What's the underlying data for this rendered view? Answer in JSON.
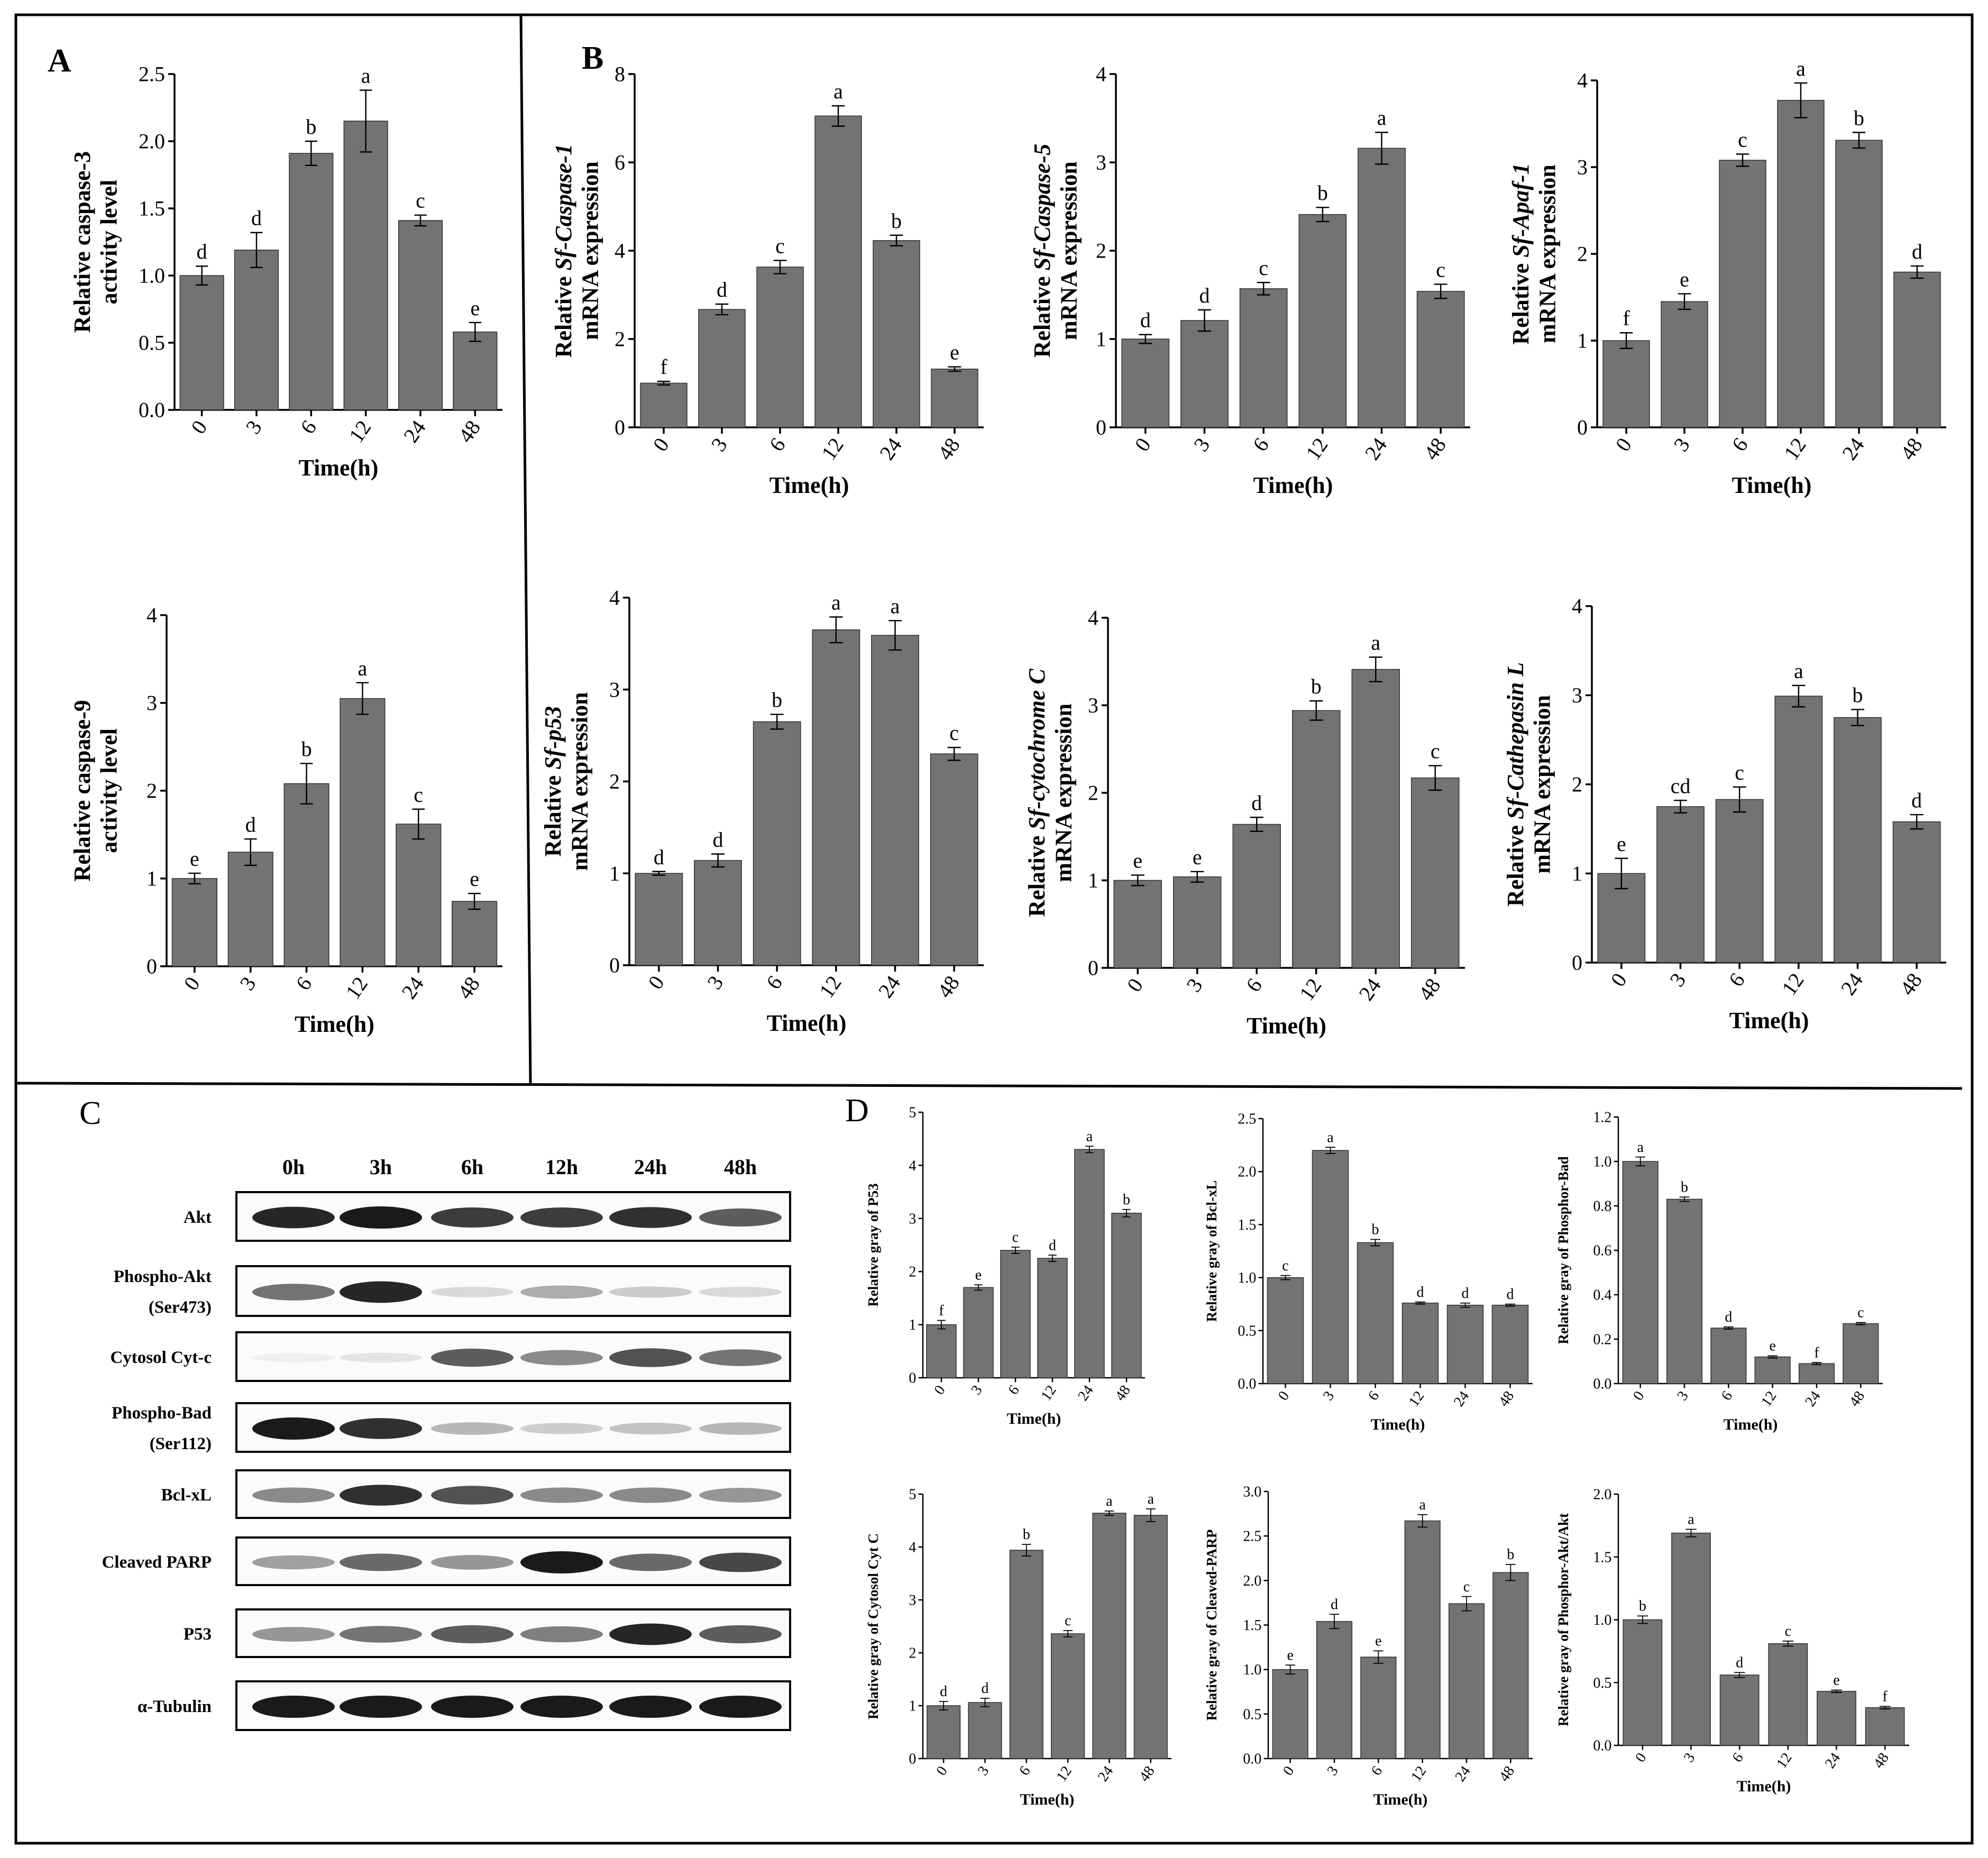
{
  "colors": {
    "bar": "#737373",
    "ink": "#000000",
    "band": "#1a1a1a"
  },
  "panel_labels": {
    "A": "A",
    "B": "B",
    "C": "C",
    "D": "D"
  },
  "chart_data": [
    {
      "id": "a1",
      "type": "bar",
      "xlabel": "Time(h)",
      "ylabel_lines": [
        [
          {
            "t": "Relative caspase-3"
          }
        ],
        [
          {
            "t": "activity level"
          }
        ]
      ],
      "categories": [
        "0",
        "3",
        "6",
        "12",
        "24",
        "48"
      ],
      "values": [
        1.0,
        1.19,
        1.91,
        2.15,
        1.41,
        0.58
      ],
      "errors": [
        0.07,
        0.13,
        0.09,
        0.23,
        0.04,
        0.07
      ],
      "letters": [
        "d",
        "d",
        "b",
        "a",
        "c",
        "e"
      ],
      "ylim": [
        0,
        2.5
      ],
      "ticks": [
        "0.0",
        "0.5",
        "1.0",
        "1.5",
        "2.0",
        "2.5"
      ]
    },
    {
      "id": "a2",
      "type": "bar",
      "xlabel": "Time(h)",
      "ylabel_lines": [
        [
          {
            "t": "Relative caspase-9"
          }
        ],
        [
          {
            "t": "activity level"
          }
        ]
      ],
      "categories": [
        "0",
        "3",
        "6",
        "12",
        "24",
        "48"
      ],
      "values": [
        1.0,
        1.3,
        2.08,
        3.05,
        1.62,
        0.74
      ],
      "errors": [
        0.06,
        0.15,
        0.23,
        0.18,
        0.17,
        0.09
      ],
      "letters": [
        "e",
        "d",
        "b",
        "a",
        "c",
        "e"
      ],
      "ylim": [
        0,
        4
      ],
      "ticks": [
        "0",
        "1",
        "2",
        "3",
        "4"
      ]
    },
    {
      "id": "b1",
      "type": "bar",
      "xlabel": "Time(h)",
      "ylabel_lines": [
        [
          {
            "t": "Relative "
          },
          {
            "t": "Sf-Caspase-1",
            "i": true
          }
        ],
        [
          {
            "t": "mRNA expression"
          }
        ]
      ],
      "categories": [
        "0",
        "3",
        "6",
        "12",
        "24",
        "48"
      ],
      "values": [
        1.0,
        2.67,
        3.63,
        7.05,
        4.23,
        1.32
      ],
      "errors": [
        0.04,
        0.12,
        0.15,
        0.23,
        0.12,
        0.05
      ],
      "letters": [
        "f",
        "d",
        "c",
        "a",
        "b",
        "e"
      ],
      "ylim": [
        0,
        8
      ],
      "ticks": [
        "0",
        "2",
        "4",
        "6",
        "8"
      ]
    },
    {
      "id": "b2",
      "type": "bar",
      "xlabel": "Time(h)",
      "ylabel_lines": [
        [
          {
            "t": "Relative "
          },
          {
            "t": "Sf-Caspase-5",
            "i": true
          }
        ],
        [
          {
            "t": "mRNA expression"
          }
        ]
      ],
      "categories": [
        "0",
        "3",
        "6",
        "12",
        "24",
        "48"
      ],
      "values": [
        1.0,
        1.21,
        1.57,
        2.41,
        3.16,
        1.54
      ],
      "errors": [
        0.05,
        0.12,
        0.07,
        0.08,
        0.18,
        0.08
      ],
      "letters": [
        "d",
        "d",
        "c",
        "b",
        "a",
        "c"
      ],
      "ylim": [
        0,
        4
      ],
      "ticks": [
        "0",
        "1",
        "2",
        "3",
        "4"
      ]
    },
    {
      "id": "b3",
      "type": "bar",
      "xlabel": "Time(h)",
      "ylabel_lines": [
        [
          {
            "t": "Relative "
          },
          {
            "t": "Sf-Apaf-1",
            "i": true
          }
        ],
        [
          {
            "t": "mRNA expression"
          }
        ]
      ],
      "categories": [
        "0",
        "3",
        "6",
        "12",
        "24",
        "48"
      ],
      "values": [
        1.0,
        1.45,
        3.08,
        3.77,
        3.31,
        1.79
      ],
      "errors": [
        0.09,
        0.09,
        0.07,
        0.2,
        0.09,
        0.07
      ],
      "letters": [
        "f",
        "e",
        "c",
        "a",
        "b",
        "d"
      ],
      "ylim": [
        0,
        4
      ],
      "ticks": [
        "0",
        "1",
        "2",
        "3",
        "4"
      ]
    },
    {
      "id": "b4",
      "type": "bar",
      "xlabel": "Time(h)",
      "ylabel_lines": [
        [
          {
            "t": "Relative "
          },
          {
            "t": "Sf-p53",
            "i": true
          }
        ],
        [
          {
            "t": "mRNA expression"
          }
        ]
      ],
      "categories": [
        "0",
        "3",
        "6",
        "12",
        "24",
        "48"
      ],
      "values": [
        1.0,
        1.14,
        2.65,
        3.65,
        3.59,
        2.3
      ],
      "errors": [
        0.02,
        0.07,
        0.08,
        0.14,
        0.16,
        0.07
      ],
      "letters": [
        "d",
        "d",
        "b",
        "a",
        "a",
        "c"
      ],
      "ylim": [
        0,
        4
      ],
      "ticks": [
        "0",
        "1",
        "2",
        "3",
        "4"
      ]
    },
    {
      "id": "b5",
      "type": "bar",
      "xlabel": "Time(h)",
      "ylabel_lines": [
        [
          {
            "t": "Relative "
          },
          {
            "t": "Sf-cytochrome C",
            "i": true
          }
        ],
        [
          {
            "t": "mRNA expression"
          }
        ]
      ],
      "categories": [
        "0",
        "3",
        "6",
        "12",
        "24",
        "48"
      ],
      "values": [
        1.0,
        1.04,
        1.64,
        2.94,
        3.41,
        2.17
      ],
      "errors": [
        0.06,
        0.06,
        0.08,
        0.11,
        0.14,
        0.14
      ],
      "letters": [
        "e",
        "e",
        "d",
        "b",
        "a",
        "c"
      ],
      "ylim": [
        0,
        4
      ],
      "ticks": [
        "0",
        "1",
        "2",
        "3",
        "4"
      ]
    },
    {
      "id": "b6",
      "type": "bar",
      "xlabel": "Time(h)",
      "ylabel_lines": [
        [
          {
            "t": "Relative "
          },
          {
            "t": "Sf-Cathepasin L",
            "i": true
          }
        ],
        [
          {
            "t": "mRNA expression"
          }
        ]
      ],
      "categories": [
        "0",
        "3",
        "6",
        "12",
        "24",
        "48"
      ],
      "values": [
        1.0,
        1.75,
        1.83,
        2.99,
        2.75,
        1.58
      ],
      "errors": [
        0.17,
        0.07,
        0.14,
        0.12,
        0.09,
        0.08
      ],
      "letters": [
        "e",
        "cd",
        "c",
        "a",
        "b",
        "d"
      ],
      "ylim": [
        0,
        4
      ],
      "ticks": [
        "0",
        "1",
        "2",
        "3",
        "4"
      ]
    },
    {
      "id": "d1",
      "type": "bar",
      "xlabel": "Time(h)",
      "ylabel_lines": [
        [
          {
            "t": "Relative gray of P53"
          }
        ]
      ],
      "categories": [
        "0",
        "3",
        "6",
        "12",
        "24",
        "48"
      ],
      "values": [
        1.0,
        1.7,
        2.4,
        2.25,
        4.3,
        3.1
      ],
      "errors": [
        0.08,
        0.05,
        0.06,
        0.06,
        0.06,
        0.07
      ],
      "letters": [
        "f",
        "e",
        "c",
        "d",
        "a",
        "b"
      ],
      "ylim": [
        0,
        5
      ],
      "ticks": [
        "0",
        "1",
        "2",
        "3",
        "4",
        "5"
      ]
    },
    {
      "id": "d2",
      "type": "bar",
      "xlabel": "Time(h)",
      "ylabel_lines": [
        [
          {
            "t": "Relative gray of Bcl-xL"
          }
        ]
      ],
      "categories": [
        "0",
        "3",
        "6",
        "12",
        "24",
        "48"
      ],
      "values": [
        1.0,
        2.2,
        1.33,
        0.76,
        0.74,
        0.74
      ],
      "errors": [
        0.02,
        0.03,
        0.03,
        0.01,
        0.02,
        0.01
      ],
      "letters": [
        "c",
        "a",
        "b",
        "d",
        "d",
        "d"
      ],
      "ylim": [
        0,
        2.5
      ],
      "ticks": [
        "0.0",
        "0.5",
        "1.0",
        "1.5",
        "2.0",
        "2.5"
      ]
    },
    {
      "id": "d3",
      "type": "bar",
      "xlabel": "Time(h)",
      "ylabel_lines": [
        [
          {
            "t": "Relative gray of Phosphor-Bad"
          }
        ]
      ],
      "categories": [
        "0",
        "3",
        "6",
        "12",
        "24",
        "48"
      ],
      "values": [
        1.0,
        0.83,
        0.25,
        0.12,
        0.09,
        0.27
      ],
      "errors": [
        0.02,
        0.01,
        0.005,
        0.005,
        0.005,
        0.005
      ],
      "letters": [
        "a",
        "b",
        "d",
        "e",
        "f",
        "c"
      ],
      "ylim": [
        0,
        1.2
      ],
      "ticks": [
        "0.0",
        "0.2",
        "0.4",
        "0.6",
        "0.8",
        "1.0",
        "1.2"
      ]
    },
    {
      "id": "d4",
      "type": "bar",
      "xlabel": "Time(h)",
      "ylabel_lines": [
        [
          {
            "t": "Relative gray of Cytosol Cyt C"
          }
        ]
      ],
      "categories": [
        "0",
        "3",
        "6",
        "12",
        "24",
        "48"
      ],
      "values": [
        1.0,
        1.06,
        3.94,
        2.36,
        4.64,
        4.6
      ],
      "errors": [
        0.08,
        0.08,
        0.11,
        0.06,
        0.04,
        0.12
      ],
      "letters": [
        "d",
        "d",
        "b",
        "c",
        "a",
        "a"
      ],
      "ylim": [
        0,
        5
      ],
      "ticks": [
        "0",
        "1",
        "2",
        "3",
        "4",
        "5"
      ]
    },
    {
      "id": "d5",
      "type": "bar",
      "xlabel": "Time(h)",
      "ylabel_lines": [
        [
          {
            "t": "Relative gray of Cleaved-PARP"
          }
        ]
      ],
      "categories": [
        "0",
        "3",
        "6",
        "12",
        "24",
        "48"
      ],
      "values": [
        1.0,
        1.54,
        1.14,
        2.67,
        1.74,
        2.09
      ],
      "errors": [
        0.05,
        0.08,
        0.07,
        0.07,
        0.08,
        0.09
      ],
      "letters": [
        "e",
        "d",
        "e",
        "a",
        "c",
        "b"
      ],
      "ylim": [
        0,
        3.0
      ],
      "ticks": [
        "0.0",
        "0.5",
        "1.0",
        "1.5",
        "2.0",
        "2.5",
        "3.0"
      ]
    },
    {
      "id": "d6",
      "type": "bar",
      "xlabel": "Time(h)",
      "ylabel_lines": [
        [
          {
            "t": "Relative gray of Phosphor-Akt/Akt"
          }
        ]
      ],
      "categories": [
        "0",
        "3",
        "6",
        "12",
        "24",
        "48"
      ],
      "values": [
        1.0,
        1.69,
        0.56,
        0.81,
        0.43,
        0.3
      ],
      "errors": [
        0.03,
        0.03,
        0.02,
        0.02,
        0.01,
        0.01
      ],
      "letters": [
        "b",
        "a",
        "d",
        "c",
        "e",
        "f"
      ],
      "ylim": [
        0,
        2.0
      ],
      "ticks": [
        "0.0",
        "0.5",
        "1.0",
        "1.5",
        "2.0"
      ]
    }
  ],
  "western_blot": {
    "lanes": [
      "0h",
      "3h",
      "6h",
      "12h",
      "24h",
      "48h"
    ],
    "rows": [
      {
        "label": [
          "Akt"
        ],
        "intensity": [
          0.95,
          1.0,
          0.85,
          0.85,
          0.9,
          0.7
        ]
      },
      {
        "label": [
          "Phospho-Akt",
          "(Ser473)"
        ],
        "intensity": [
          0.6,
          0.95,
          0.15,
          0.35,
          0.2,
          0.15
        ]
      },
      {
        "label": [
          "Cytosol Cyt-c"
        ],
        "intensity": [
          0.05,
          0.1,
          0.7,
          0.5,
          0.75,
          0.6
        ]
      },
      {
        "label": [
          "Phospho-Bad",
          "(Ser112)"
        ],
        "intensity": [
          1.0,
          0.9,
          0.3,
          0.2,
          0.25,
          0.3
        ]
      },
      {
        "label": [
          "Bcl-xL"
        ],
        "intensity": [
          0.5,
          0.9,
          0.75,
          0.5,
          0.5,
          0.45
        ]
      },
      {
        "label": [
          "Cleaved PARP"
        ],
        "intensity": [
          0.4,
          0.65,
          0.45,
          1.0,
          0.65,
          0.8
        ]
      },
      {
        "label": [
          "P53"
        ],
        "intensity": [
          0.45,
          0.6,
          0.7,
          0.55,
          0.95,
          0.7
        ]
      },
      {
        "label": [
          "α-Tubulin"
        ],
        "intensity": [
          1.0,
          1.0,
          1.0,
          1.0,
          1.0,
          1.0
        ],
        "italic_first": true
      }
    ]
  }
}
